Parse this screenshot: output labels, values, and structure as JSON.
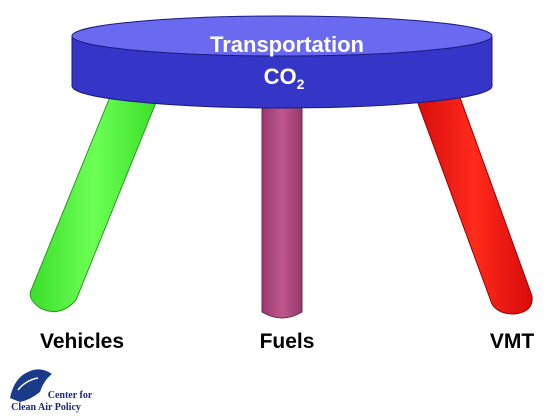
{
  "seat": {
    "line1": "Transportation",
    "line2": {
      "main": "CO",
      "sub": "2"
    }
  },
  "legs": [
    {
      "label": "Vehicles"
    },
    {
      "label": "Fuels"
    },
    {
      "label": "VMT"
    }
  ],
  "logo": {
    "line1": "Center for",
    "line2": "Clean Air Policy"
  }
}
